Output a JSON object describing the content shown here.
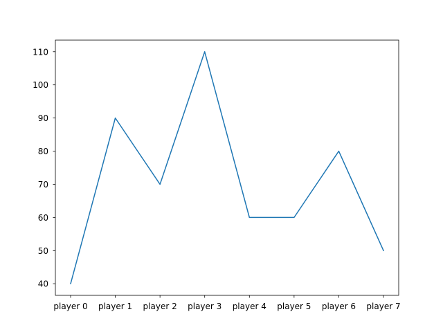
{
  "chart_data": {
    "type": "line",
    "categories": [
      "player 0",
      "player 1",
      "player 2",
      "player 3",
      "player 4",
      "player 5",
      "player 6",
      "player 7"
    ],
    "series": [
      {
        "values": [
          40,
          90,
          70,
          110,
          60,
          60,
          80,
          50
        ]
      }
    ],
    "yticks": [
      40,
      50,
      60,
      70,
      80,
      90,
      100,
      110
    ],
    "ylim": [
      36.5,
      113.5
    ],
    "grid": false,
    "legend": "none",
    "colors": {
      "line": "#1f77b4",
      "axis": "#000000",
      "background": "#ffffff"
    }
  }
}
